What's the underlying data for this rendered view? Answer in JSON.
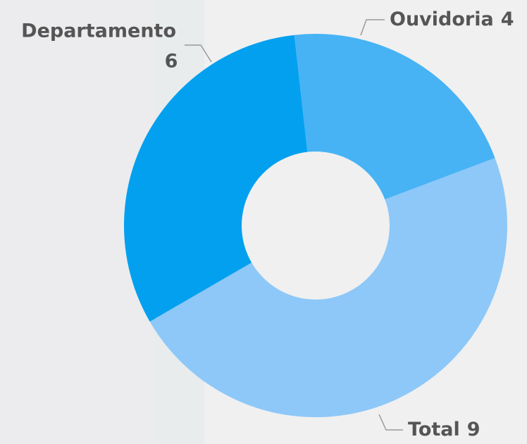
{
  "chart_data": {
    "type": "donut",
    "categories": [
      "Ouvidoria",
      "Total",
      "Departamento"
    ],
    "values": [
      4,
      9,
      6
    ],
    "colors": [
      "#47b3f5",
      "#8dc8f8",
      "#03a0ef"
    ]
  }
}
